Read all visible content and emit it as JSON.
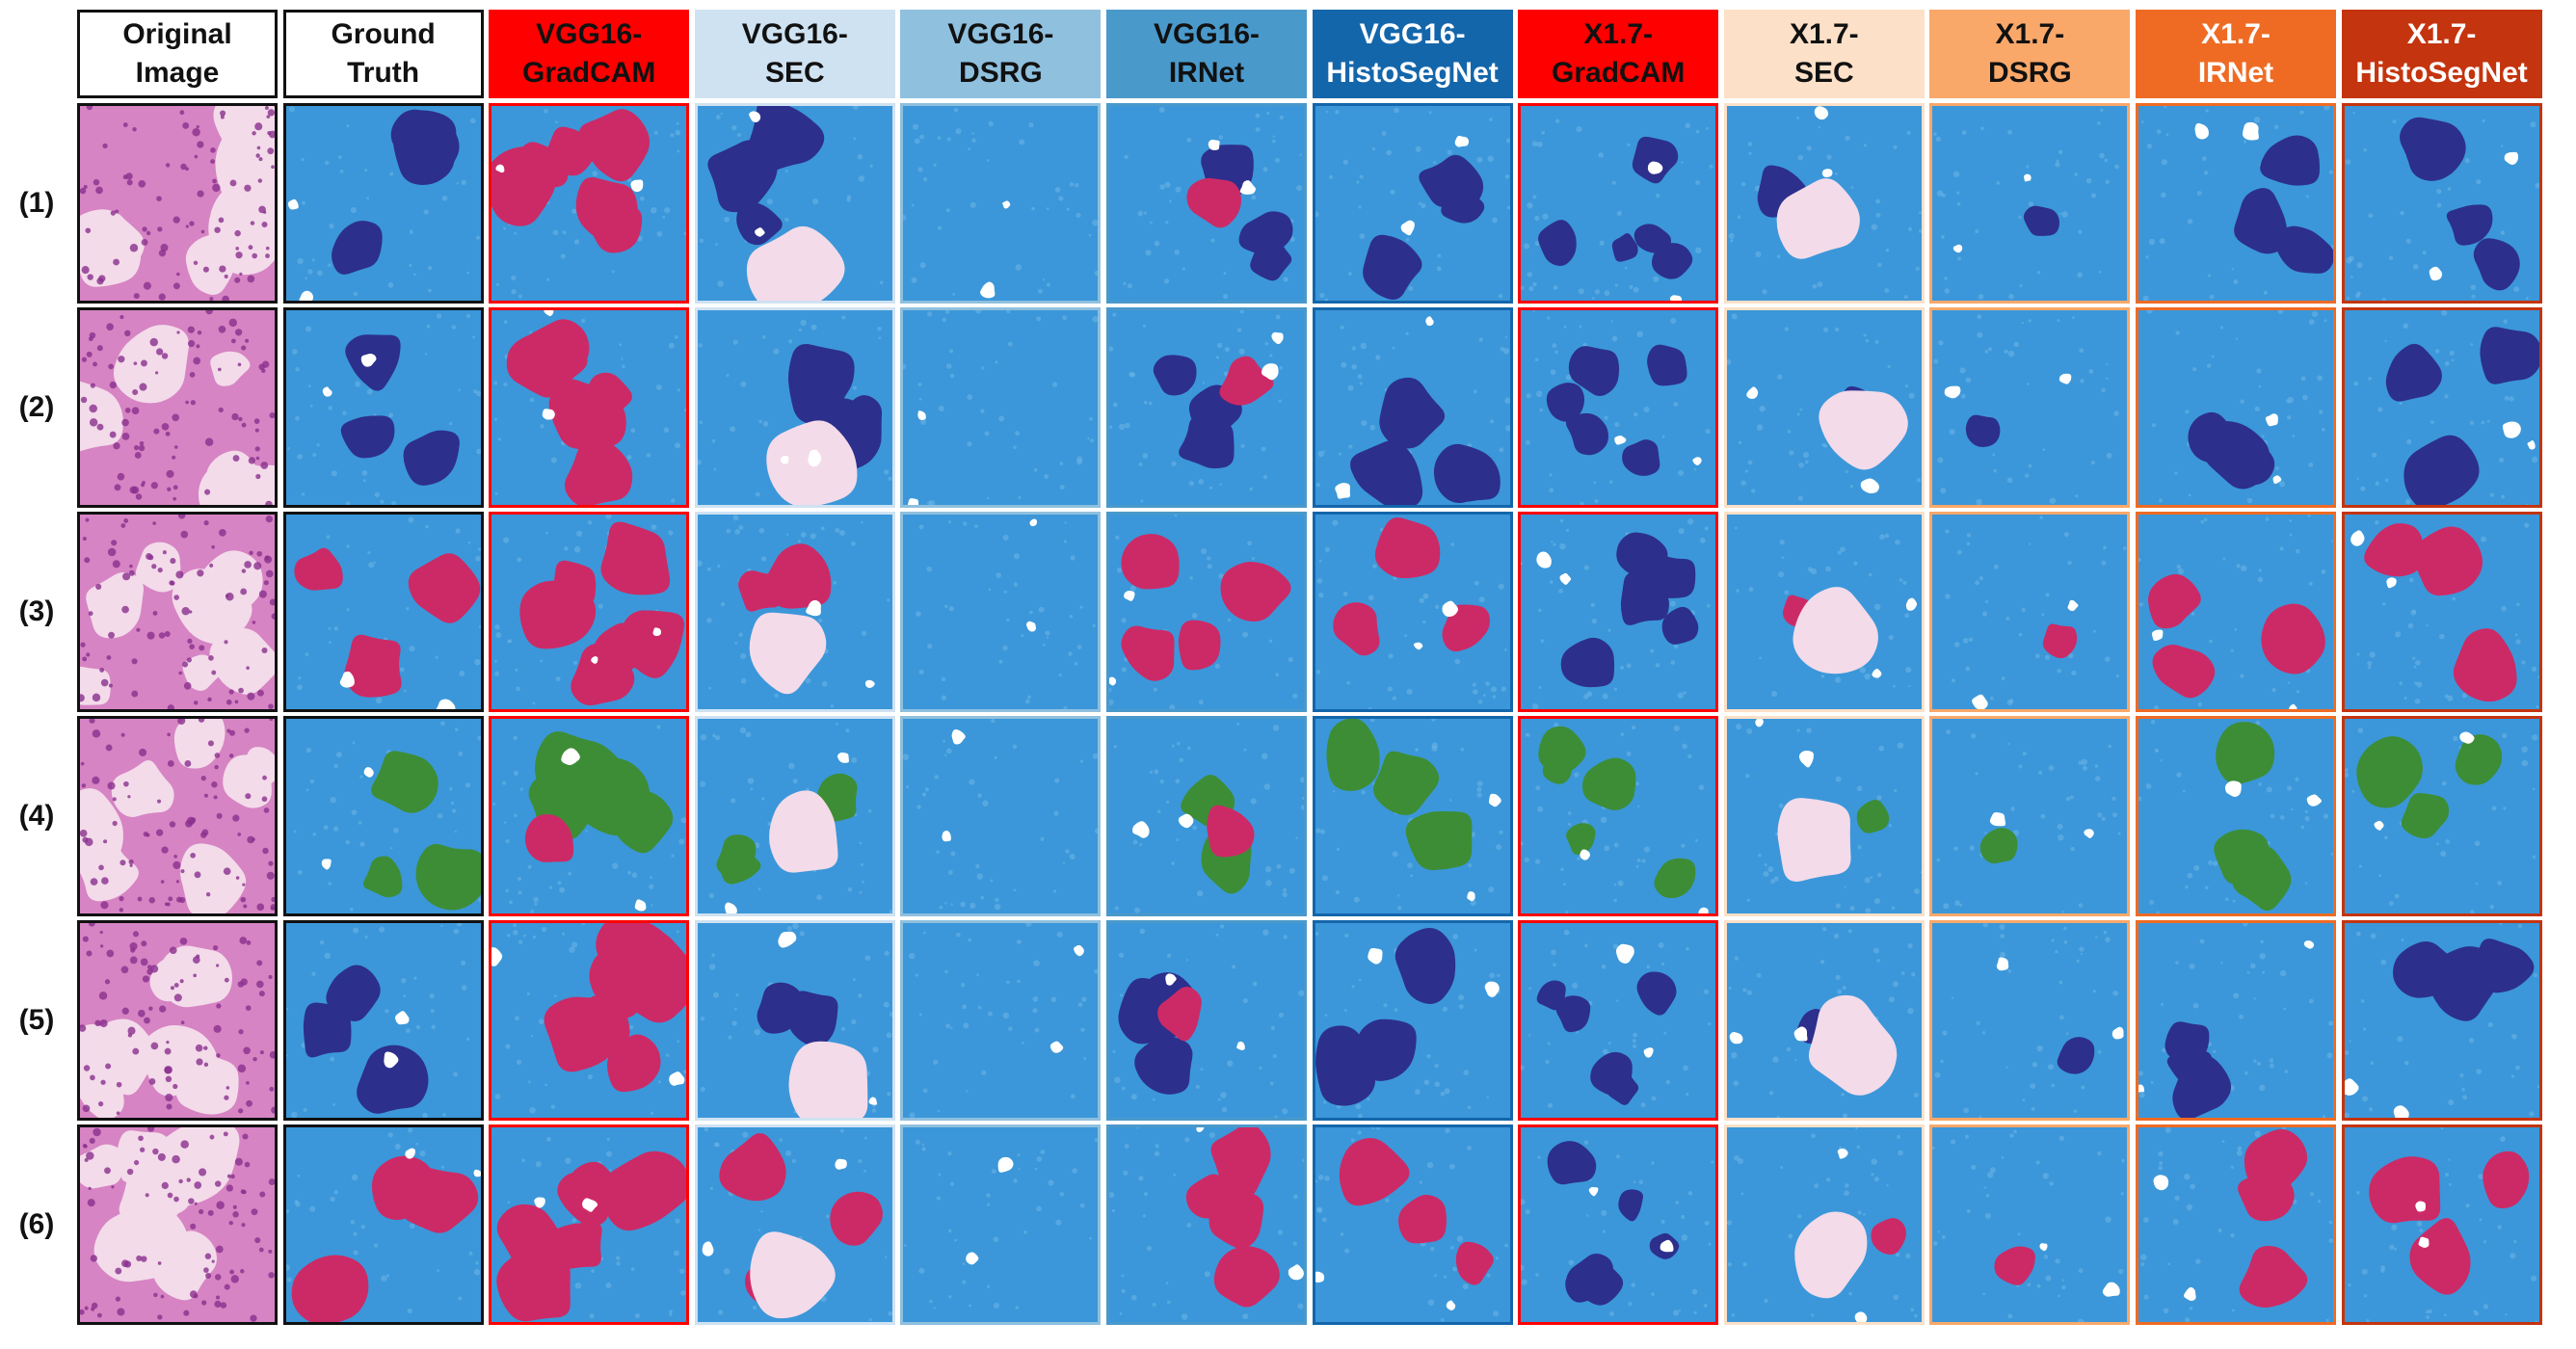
{
  "figure": {
    "columns": [
      {
        "id": "original",
        "label": "Original\nImage",
        "header_bg": "#ffffff",
        "header_fg": "#111111",
        "border": "#111111"
      },
      {
        "id": "gt",
        "label": "Ground\nTruth",
        "header_bg": "#ffffff",
        "header_fg": "#111111",
        "border": "#111111"
      },
      {
        "id": "vgg-gradcam",
        "label": "VGG16-\nGradCAM",
        "header_bg": "#ff0000",
        "header_fg": "#111111",
        "border": "#ff0000"
      },
      {
        "id": "vgg-sec",
        "label": "VGG16-\nSEC",
        "header_bg": "#cfe2f2",
        "header_fg": "#111111",
        "border": "#cfe2f2"
      },
      {
        "id": "vgg-dsrg",
        "label": "VGG16-\nDSRG",
        "header_bg": "#8fc0de",
        "header_fg": "#111111",
        "border": "#8fc0de"
      },
      {
        "id": "vgg-irnet",
        "label": "VGG16-\nIRNet",
        "header_bg": "#4a99cb",
        "header_fg": "#111111",
        "border": "#4a99cb"
      },
      {
        "id": "vgg-histosegnet",
        "label": "VGG16-\nHistoSegNet",
        "header_bg": "#1466ab",
        "header_fg": "#ffffff",
        "border": "#1466ab"
      },
      {
        "id": "x17-gradcam",
        "label": "X1.7-\nGradCAM",
        "header_bg": "#ff0000",
        "header_fg": "#111111",
        "border": "#ff0000"
      },
      {
        "id": "x17-sec",
        "label": "X1.7-\nSEC",
        "header_bg": "#fde0c8",
        "header_fg": "#111111",
        "border": "#fde0c8"
      },
      {
        "id": "x17-dsrg",
        "label": "X1.7-\nDSRG",
        "header_bg": "#f9a86a",
        "header_fg": "#111111",
        "border": "#f9a86a"
      },
      {
        "id": "x17-irnet",
        "label": "X1.7-\nIRNet",
        "header_bg": "#ef6b24",
        "header_fg": "#ffffff",
        "border": "#ef6b24"
      },
      {
        "id": "x17-histosegnet",
        "label": "X1.7-\nHistoSegNet",
        "header_bg": "#c4340e",
        "header_fg": "#ffffff",
        "border": "#c4340e"
      }
    ],
    "rows": [
      "(1)",
      "(2)",
      "(3)",
      "(4)",
      "(5)",
      "(6)"
    ],
    "palette": {
      "background": "#3b97d9",
      "background_light": "#6bb4e6",
      "class_a": "#2d2f8c",
      "class_b": "#cc2a66",
      "class_c": "#3d8d36",
      "exclusion": "#ffffff",
      "he_stain": "#d684c3",
      "he_nuclei": "#8a2f8d",
      "tissue_light": "#f3dbea"
    }
  }
}
